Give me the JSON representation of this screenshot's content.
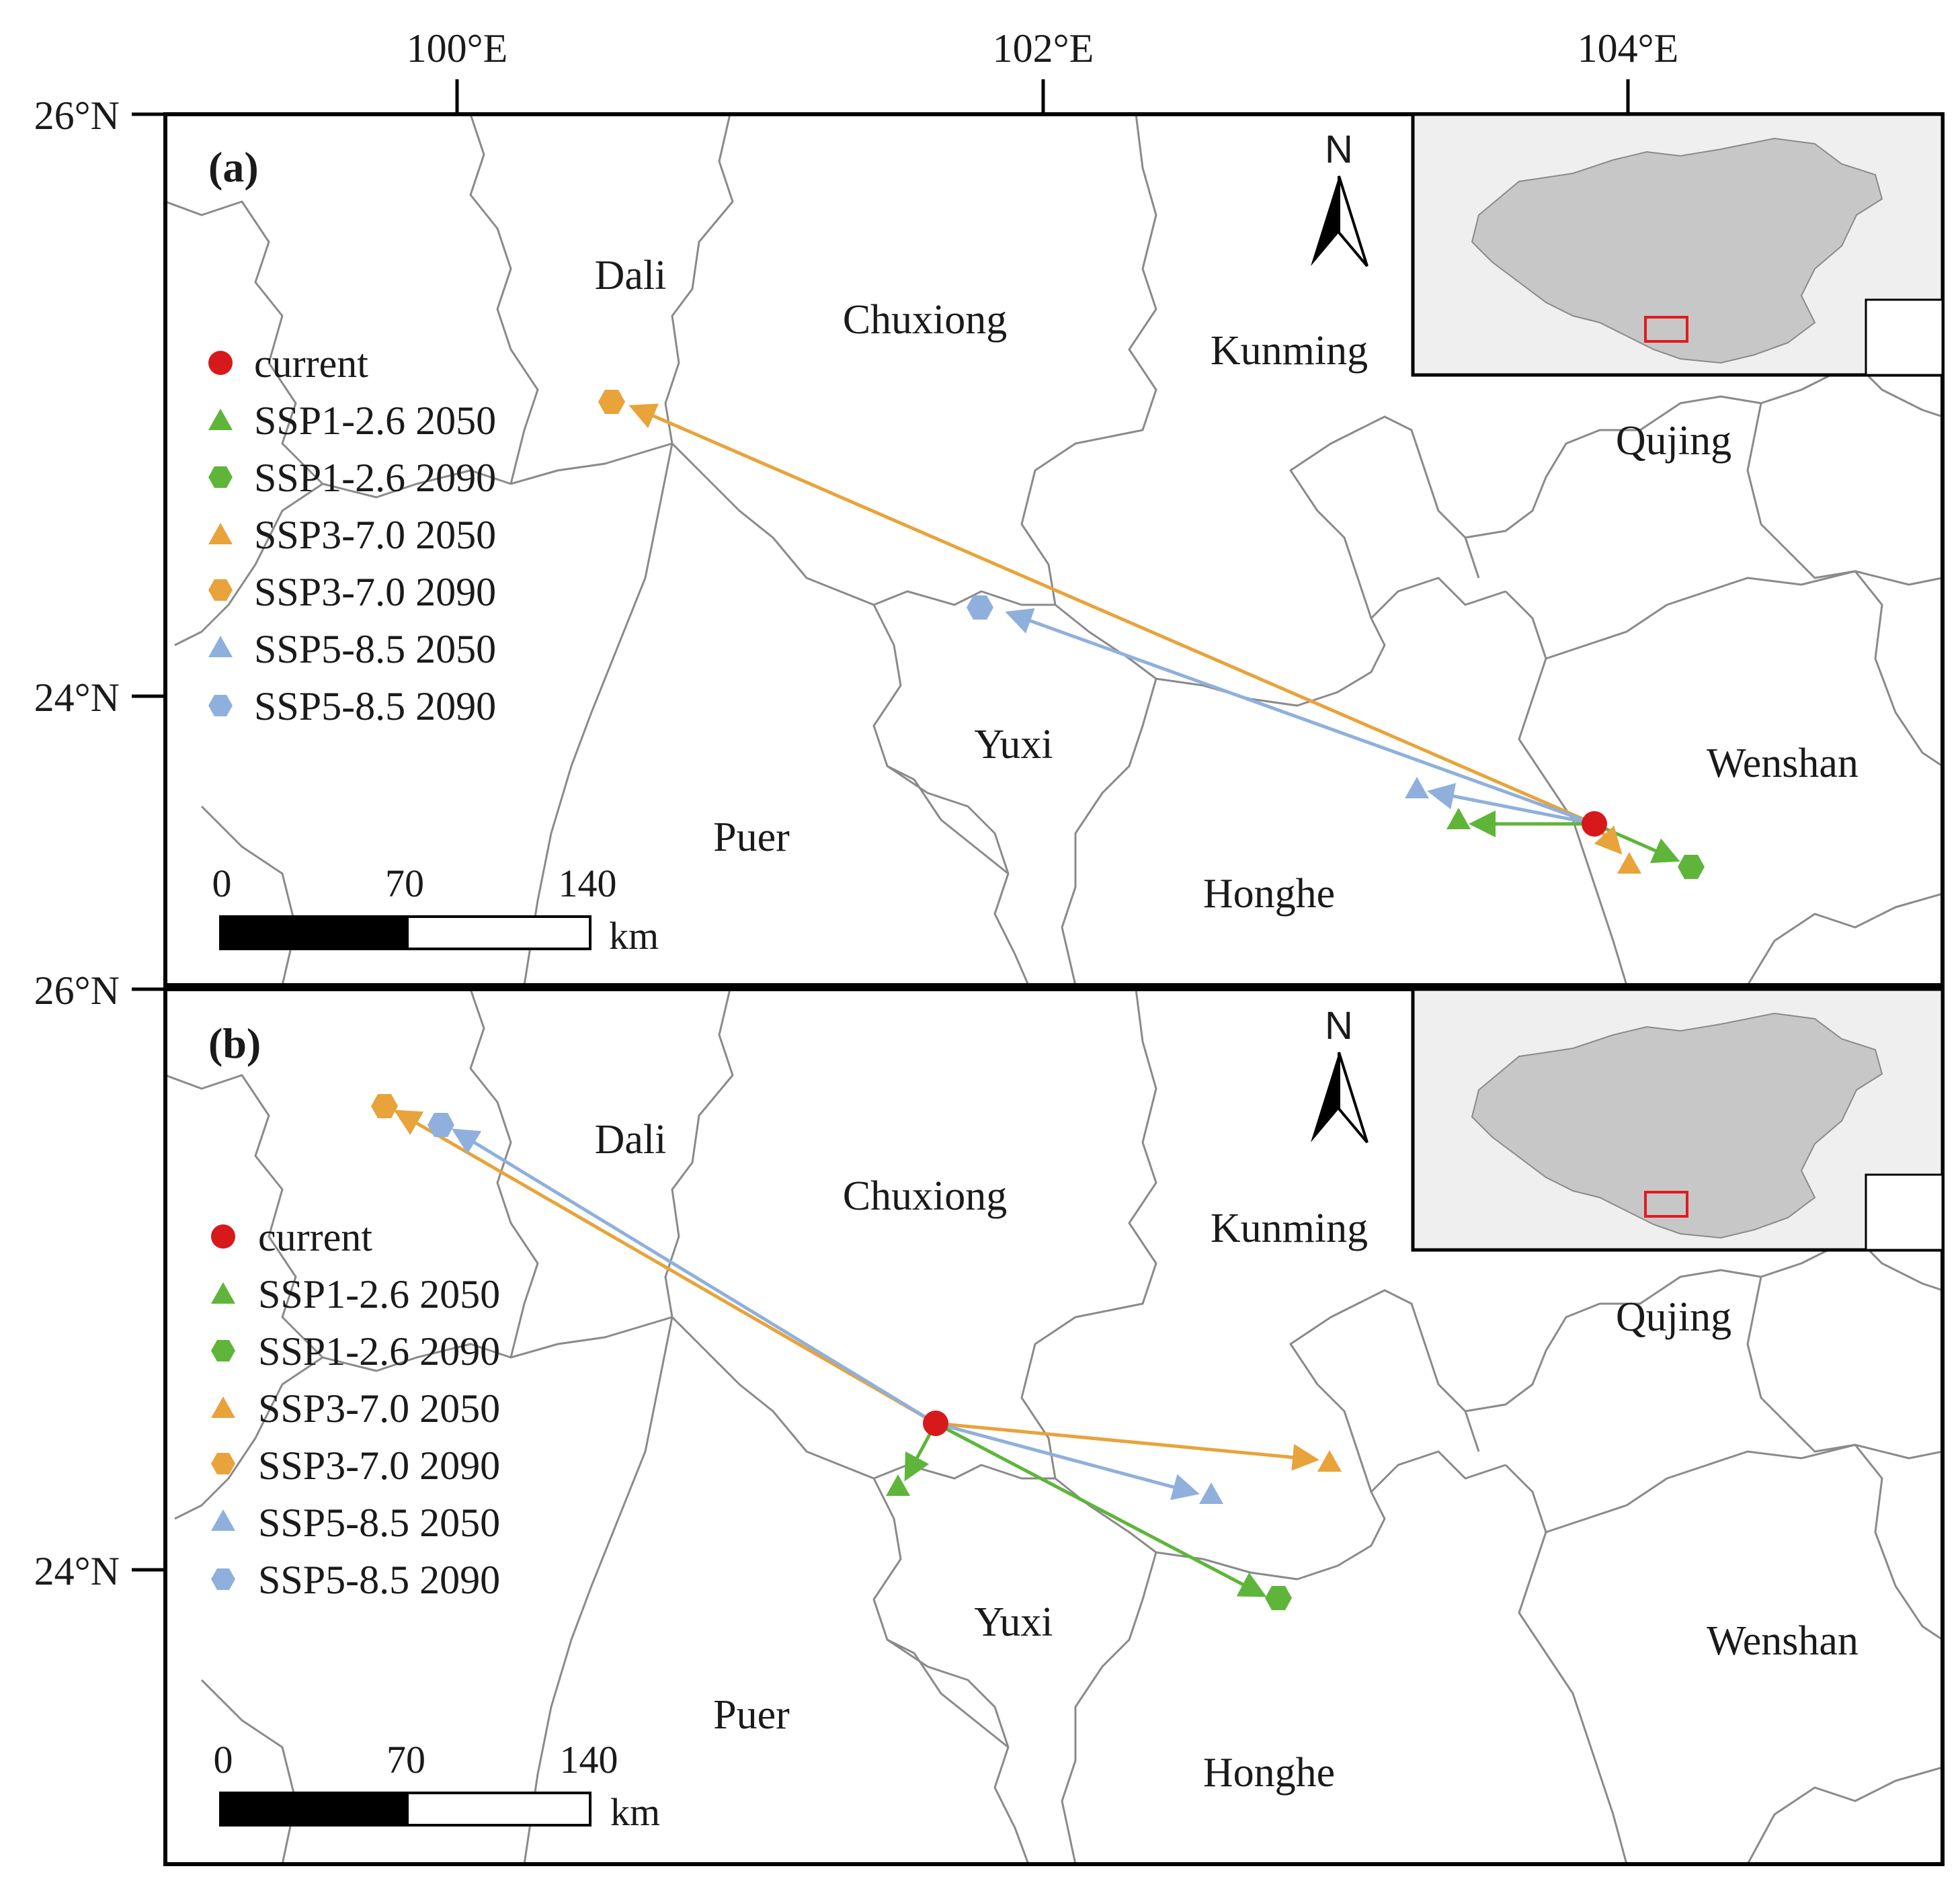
{
  "axes": {
    "lon_ticks": [
      "100°E",
      "102°E",
      "104°E"
    ],
    "lat_ticks_a": [
      "26°N",
      "24°N"
    ],
    "lat_ticks_b": [
      "26°N",
      "24°N"
    ]
  },
  "panels": [
    {
      "label": "(a)",
      "regions": [
        "Dali",
        "Chuxiong",
        "Kunming",
        "Qujing",
        "Yuxi",
        "Wenshan",
        "Puer",
        "Honghe"
      ],
      "legend": [
        "current",
        "SSP1-2.6 2050",
        "SSP1-2.6 2090",
        "SSP3-7.0 2050",
        "SSP3-7.0 2090",
        "SSP5-8.5 2050",
        "SSP5-8.5 2090"
      ],
      "north": "N",
      "scale": {
        "ticks": [
          "0",
          "70",
          "140"
        ],
        "unit": "km"
      }
    },
    {
      "label": "(b)",
      "regions": [
        "Dali",
        "Chuxiong",
        "Kunming",
        "Qujing",
        "Yuxi",
        "Wenshan",
        "Puer",
        "Honghe"
      ],
      "legend": [
        "current",
        "SSP1-2.6 2050",
        "SSP1-2.6 2090",
        "SSP3-7.0 2050",
        "SSP3-7.0 2090",
        "SSP5-8.5 2050",
        "SSP5-8.5 2090"
      ],
      "north": "N",
      "scale": {
        "ticks": [
          "0",
          "70",
          "140"
        ],
        "unit": "km"
      }
    }
  ],
  "colors": {
    "current": "#d7191c",
    "ssp126": "#5fb53a",
    "ssp370": "#e8a33a",
    "ssp585": "#8fb0dc",
    "inset_china": "#c7c7c7",
    "inset_highlight": "#e31a1c"
  }
}
